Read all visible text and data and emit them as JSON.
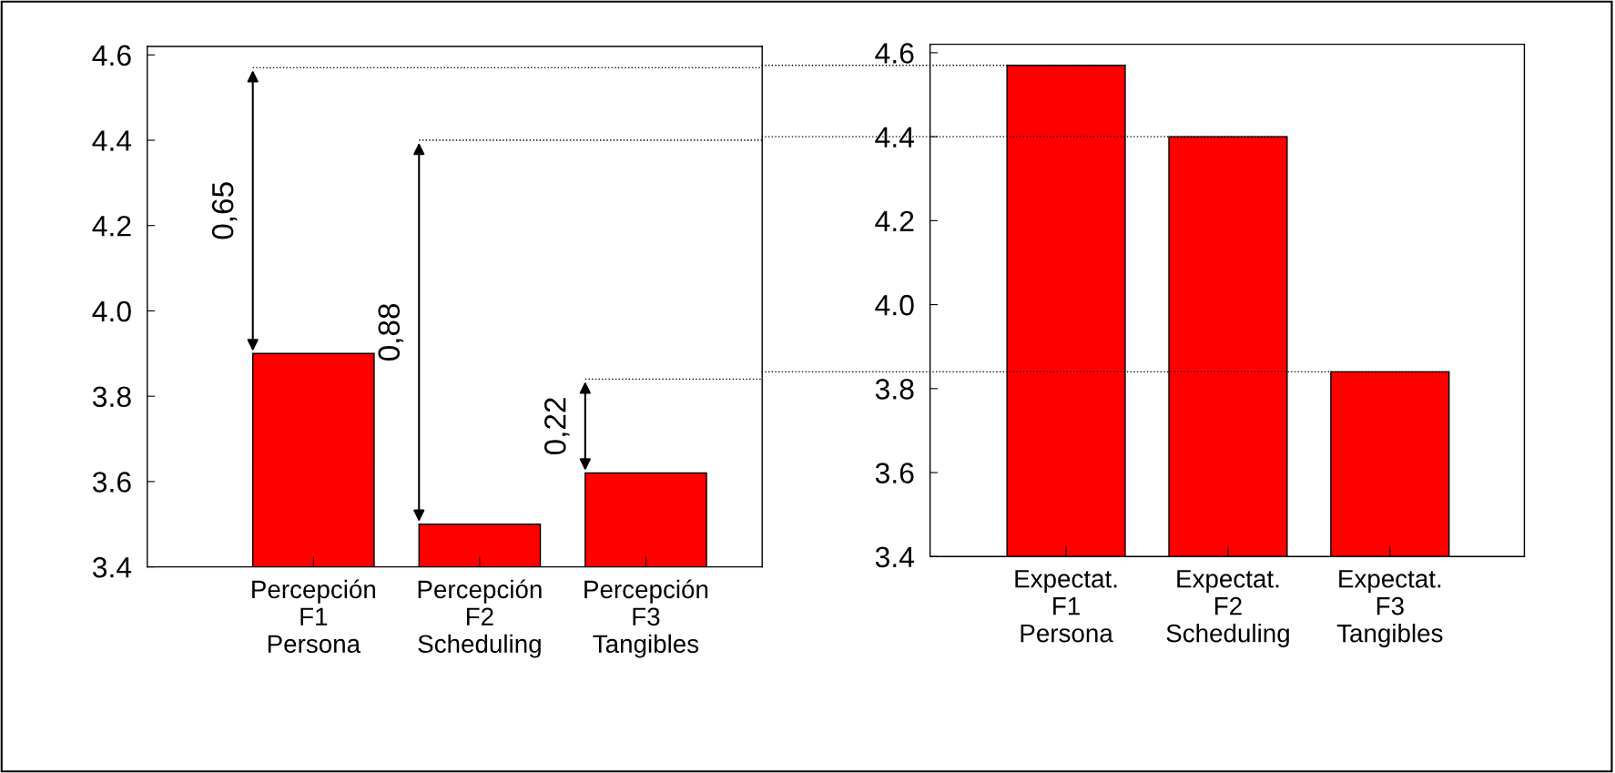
{
  "chart_data": [
    {
      "type": "bar",
      "categories": [
        "Percepción\nF1\nPersona",
        "Percepción\nF2\nScheduling",
        "Percepción\nF3\nTangibles"
      ],
      "values": [
        3.9,
        3.5,
        3.62
      ],
      "color": "#ff0000",
      "ylim": [
        3.4,
        4.62
      ],
      "yticks": [
        {
          "value": 3.4,
          "label": "3.4"
        },
        {
          "value": 3.6,
          "label": "3.6"
        },
        {
          "value": 3.8,
          "label": "3.8"
        },
        {
          "value": 4.0,
          "label": "4.0"
        },
        {
          "value": 4.2,
          "label": "4.2"
        },
        {
          "value": 4.4,
          "label": "4.4"
        },
        {
          "value": 4.6,
          "label": "4.6"
        }
      ],
      "grid": false,
      "annotations": [
        "0,65",
        "0,88",
        "0,22"
      ],
      "ref_lines": [
        {
          "axis": "y",
          "value": 4.57,
          "color": "#000000",
          "line_style": "dotted"
        },
        {
          "axis": "y",
          "value": 4.4,
          "color": "#000000",
          "line_style": "dotted"
        },
        {
          "axis": "y",
          "value": 3.84,
          "color": "#000000",
          "line_style": "dotted"
        }
      ]
    },
    {
      "type": "bar",
      "categories": [
        "Expectat.\nF1\nPersona",
        "Expectat.\nF2\nScheduling",
        "Expectat.\nF3\nTangibles"
      ],
      "values": [
        4.57,
        4.4,
        3.84
      ],
      "color": "#ff0000",
      "ylim": [
        3.4,
        4.62
      ],
      "yticks": [
        {
          "value": 3.4,
          "label": "3.4"
        },
        {
          "value": 3.6,
          "label": "3.6"
        },
        {
          "value": 3.8,
          "label": "3.8"
        },
        {
          "value": 4.0,
          "label": "4.0"
        },
        {
          "value": 4.2,
          "label": "4.2"
        },
        {
          "value": 4.4,
          "label": "4.4"
        },
        {
          "value": 4.6,
          "label": "4.6"
        }
      ],
      "grid": false,
      "ref_lines": [
        {
          "axis": "y",
          "value": 4.57,
          "color": "#000000",
          "line_style": "dotted"
        },
        {
          "axis": "y",
          "value": 4.4,
          "color": "#000000",
          "line_style": "dotted"
        },
        {
          "axis": "y",
          "value": 3.84,
          "color": "#000000",
          "line_style": "dotted"
        }
      ]
    }
  ]
}
